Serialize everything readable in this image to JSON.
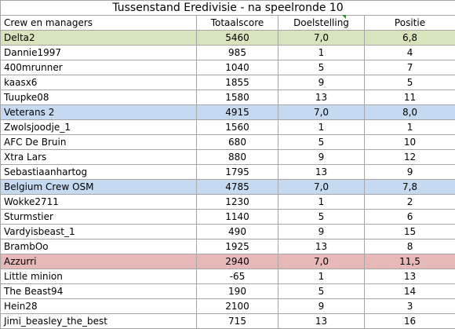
{
  "title": "Tussenstand Eredivisie - na speelronde 10",
  "headers": [
    "Crew en managers",
    "Totaalscore",
    "Doelstelling",
    "Positie"
  ],
  "colors": {
    "green_team_fill": "#d7e4bc",
    "blue_team_fill": "#c5d9f1",
    "red_team_fill": "#e6b9b8",
    "grid_line": "#a6a6a6",
    "comment_marker": "#3a8a3a"
  },
  "rows": [
    {
      "name": "Delta2",
      "score": "5460",
      "target": "7,0",
      "position": "6,8",
      "tint": "green"
    },
    {
      "name": "Dannie1997",
      "score": "985",
      "target": "1",
      "position": "4",
      "tint": ""
    },
    {
      "name": "400mrunner",
      "score": "1040",
      "target": "5",
      "position": "7",
      "tint": ""
    },
    {
      "name": "kaasx6",
      "score": "1855",
      "target": "9",
      "position": "5",
      "tint": ""
    },
    {
      "name": "Tuupke08",
      "score": "1580",
      "target": "13",
      "position": "11",
      "tint": ""
    },
    {
      "name": "Veterans 2",
      "score": "4915",
      "target": "7,0",
      "position": "8,0",
      "tint": "blue"
    },
    {
      "name": "Zwolsjoodje_1",
      "score": "1560",
      "target": "1",
      "position": "1",
      "tint": ""
    },
    {
      "name": "AFC De Bruin",
      "score": "680",
      "target": "5",
      "position": "10",
      "tint": ""
    },
    {
      "name": "Xtra Lars",
      "score": "880",
      "target": "9",
      "position": "12",
      "tint": ""
    },
    {
      "name": "Sebastiaanhartog",
      "score": "1795",
      "target": "13",
      "position": "9",
      "tint": ""
    },
    {
      "name": "Belgium Crew OSM",
      "score": "4785",
      "target": "7,0",
      "position": "7,8",
      "tint": "blue"
    },
    {
      "name": "Wokke2711",
      "score": "1230",
      "target": "1",
      "position": "2",
      "tint": ""
    },
    {
      "name": "Sturmstier",
      "score": "1140",
      "target": "5",
      "position": "6",
      "tint": ""
    },
    {
      "name": "Vardyisbeast_1",
      "score": "490",
      "target": "9",
      "position": "15",
      "tint": ""
    },
    {
      "name": "BrambOo",
      "score": "1925",
      "target": "13",
      "position": "8",
      "tint": ""
    },
    {
      "name": "Azzurri",
      "score": "2940",
      "target": "7,0",
      "position": "11,5",
      "tint": "red"
    },
    {
      "name": "Little minion",
      "score": "-65",
      "target": "1",
      "position": "13",
      "tint": ""
    },
    {
      "name": "The Beast94",
      "score": "190",
      "target": "5",
      "position": "14",
      "tint": ""
    },
    {
      "name": "Hein28",
      "score": "2100",
      "target": "9",
      "position": "3",
      "tint": ""
    },
    {
      "name": "Jimi_beasley_the_best",
      "score": "715",
      "target": "13",
      "position": "16",
      "tint": ""
    }
  ]
}
